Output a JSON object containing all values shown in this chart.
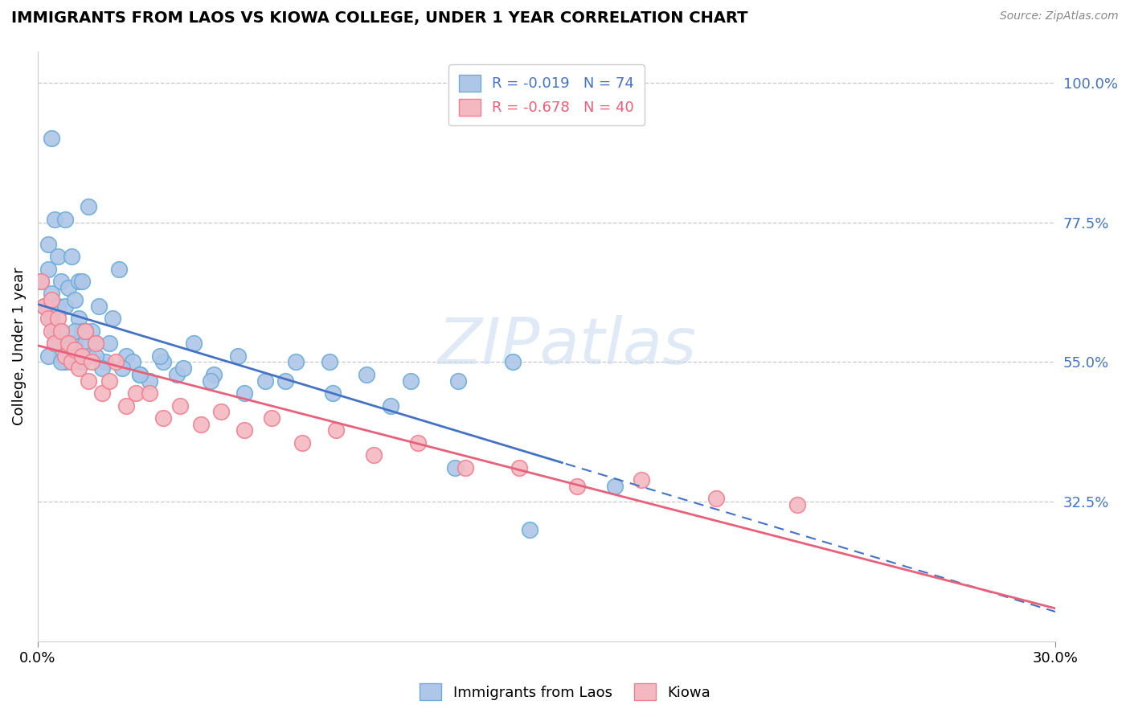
{
  "title": "IMMIGRANTS FROM LAOS VS KIOWA COLLEGE, UNDER 1 YEAR CORRELATION CHART",
  "source_text": "Source: ZipAtlas.com",
  "ylabel": "College, Under 1 year",
  "xmin": 0.0,
  "xmax": 0.3,
  "ymin": 0.1,
  "ymax": 1.05,
  "x_tick_labels": [
    "0.0%",
    "30.0%"
  ],
  "y_tick_labels_right": [
    "100.0%",
    "77.5%",
    "55.0%",
    "32.5%"
  ],
  "y_tick_values_right": [
    1.0,
    0.775,
    0.55,
    0.325
  ],
  "series1_name": "Immigrants from Laos",
  "series1_color": "#aec6e8",
  "series1_edge_color": "#6baed6",
  "series2_name": "Kiowa",
  "series2_color": "#f4b8c1",
  "series2_edge_color": "#f08090",
  "trendline1_color": "#4472c4",
  "trendline2_color": "#e8607a",
  "watermark": "ZIPatlas",
  "background_color": "#ffffff",
  "grid_color": "#c8c8c8",
  "axis_label_color": "#4472c4",
  "legend_label1": "R = -0.019   N = 74",
  "legend_label2": "R = -0.678   N = 40",
  "series1_x": [
    0.001,
    0.002,
    0.003,
    0.003,
    0.004,
    0.004,
    0.005,
    0.005,
    0.006,
    0.006,
    0.007,
    0.007,
    0.007,
    0.008,
    0.008,
    0.009,
    0.009,
    0.01,
    0.01,
    0.011,
    0.011,
    0.012,
    0.012,
    0.013,
    0.013,
    0.014,
    0.015,
    0.015,
    0.016,
    0.017,
    0.018,
    0.02,
    0.022,
    0.024,
    0.026,
    0.028,
    0.03,
    0.033,
    0.037,
    0.041,
    0.046,
    0.052,
    0.059,
    0.067,
    0.076,
    0.086,
    0.097,
    0.11,
    0.124,
    0.14,
    0.003,
    0.005,
    0.007,
    0.009,
    0.011,
    0.014,
    0.017,
    0.021,
    0.025,
    0.03,
    0.036,
    0.043,
    0.051,
    0.061,
    0.073,
    0.087,
    0.104,
    0.123,
    0.145,
    0.17,
    0.004,
    0.008,
    0.013,
    0.019
  ],
  "series1_y": [
    0.68,
    0.64,
    0.74,
    0.7,
    0.66,
    0.62,
    0.78,
    0.6,
    0.72,
    0.64,
    0.68,
    0.56,
    0.6,
    0.64,
    0.55,
    0.67,
    0.58,
    0.72,
    0.55,
    0.65,
    0.58,
    0.68,
    0.62,
    0.6,
    0.55,
    0.58,
    0.8,
    0.56,
    0.6,
    0.58,
    0.64,
    0.55,
    0.62,
    0.7,
    0.56,
    0.55,
    0.53,
    0.52,
    0.55,
    0.53,
    0.58,
    0.53,
    0.56,
    0.52,
    0.55,
    0.55,
    0.53,
    0.52,
    0.52,
    0.55,
    0.56,
    0.58,
    0.55,
    0.57,
    0.6,
    0.6,
    0.56,
    0.58,
    0.54,
    0.53,
    0.56,
    0.54,
    0.52,
    0.5,
    0.52,
    0.5,
    0.48,
    0.38,
    0.28,
    0.35,
    0.91,
    0.78,
    0.68,
    0.54
  ],
  "series2_x": [
    0.001,
    0.002,
    0.003,
    0.004,
    0.004,
    0.005,
    0.006,
    0.007,
    0.008,
    0.009,
    0.01,
    0.011,
    0.012,
    0.013,
    0.014,
    0.015,
    0.016,
    0.017,
    0.019,
    0.021,
    0.023,
    0.026,
    0.029,
    0.033,
    0.037,
    0.042,
    0.048,
    0.054,
    0.061,
    0.069,
    0.078,
    0.088,
    0.099,
    0.112,
    0.126,
    0.142,
    0.159,
    0.178,
    0.2,
    0.224
  ],
  "series2_y": [
    0.68,
    0.64,
    0.62,
    0.65,
    0.6,
    0.58,
    0.62,
    0.6,
    0.56,
    0.58,
    0.55,
    0.57,
    0.54,
    0.56,
    0.6,
    0.52,
    0.55,
    0.58,
    0.5,
    0.52,
    0.55,
    0.48,
    0.5,
    0.5,
    0.46,
    0.48,
    0.45,
    0.47,
    0.44,
    0.46,
    0.42,
    0.44,
    0.4,
    0.42,
    0.38,
    0.38,
    0.35,
    0.36,
    0.33,
    0.32
  ]
}
